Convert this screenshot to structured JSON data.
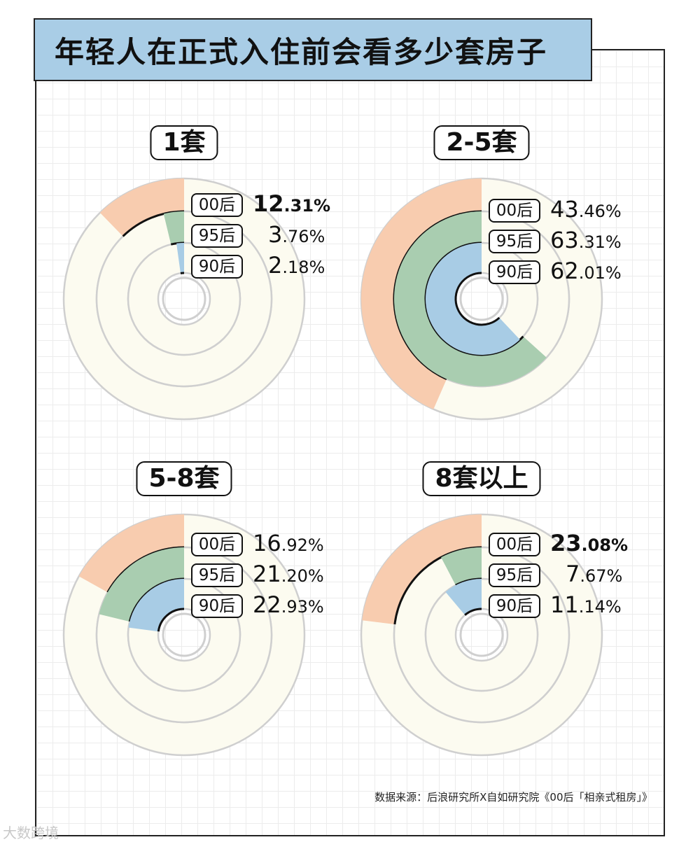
{
  "title": "年轻人在正式入住前会看多少套房子",
  "source": "数据来源：后浪研究所X自如研究院《00后「相亲式租房」》",
  "watermark": "大数跨境",
  "colors": {
    "00后": "#f8ccaf",
    "95后": "#a9cdb0",
    "90后": "#a8cce5",
    "track": "#fcfbf0",
    "track_border": "#cfcfcf"
  },
  "chart_data": [
    {
      "type": "radial-bar",
      "title": "1套",
      "bold_label": "00后",
      "series": [
        {
          "name": "00后",
          "value": 12.31,
          "int": "12",
          "dec": ".31%"
        },
        {
          "name": "95后",
          "value": 3.76,
          "int": "3",
          "dec": ".76%"
        },
        {
          "name": "90后",
          "value": 2.18,
          "int": "2",
          "dec": ".18%"
        }
      ]
    },
    {
      "type": "radial-bar",
      "title": "2-5套",
      "bold_label": "",
      "series": [
        {
          "name": "00后",
          "value": 43.46,
          "int": "43",
          "dec": ".46%"
        },
        {
          "name": "95后",
          "value": 63.31,
          "int": "63",
          "dec": ".31%"
        },
        {
          "name": "90后",
          "value": 62.01,
          "int": "62",
          "dec": ".01%"
        }
      ]
    },
    {
      "type": "radial-bar",
      "title": "5-8套",
      "bold_label": "",
      "series": [
        {
          "name": "00后",
          "value": 16.92,
          "int": "16",
          "dec": ".92%"
        },
        {
          "name": "95后",
          "value": 21.2,
          "int": "21",
          "dec": ".20%"
        },
        {
          "name": "90后",
          "value": 22.93,
          "int": "22",
          "dec": ".93%"
        }
      ]
    },
    {
      "type": "radial-bar",
      "title": "8套以上",
      "bold_label": "00后",
      "series": [
        {
          "name": "00后",
          "value": 23.08,
          "int": "23",
          "dec": ".08%"
        },
        {
          "name": "95后",
          "value": 7.67,
          "int": "7",
          "dec": ".67%"
        },
        {
          "name": "90后",
          "value": 11.14,
          "int": "11",
          "dec": ".14%"
        }
      ]
    }
  ]
}
